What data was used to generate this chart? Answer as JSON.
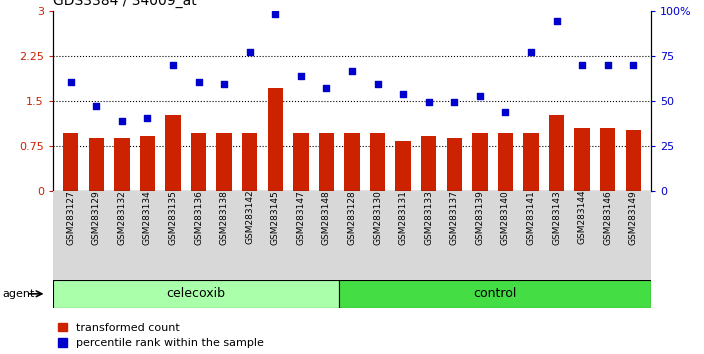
{
  "title": "GDS3384 / 34009_at",
  "categories": [
    "GSM283127",
    "GSM283129",
    "GSM283132",
    "GSM283134",
    "GSM283135",
    "GSM283136",
    "GSM283138",
    "GSM283142",
    "GSM283145",
    "GSM283147",
    "GSM283148",
    "GSM283128",
    "GSM283130",
    "GSM283131",
    "GSM283133",
    "GSM283137",
    "GSM283139",
    "GSM283140",
    "GSM283141",
    "GSM283143",
    "GSM283144",
    "GSM283146",
    "GSM283149"
  ],
  "bar_values": [
    0.97,
    0.88,
    0.88,
    0.92,
    1.27,
    0.97,
    0.97,
    0.97,
    1.72,
    0.97,
    0.97,
    0.97,
    0.97,
    0.83,
    0.92,
    0.88,
    0.97,
    0.97,
    0.97,
    1.27,
    1.05,
    1.05,
    1.02
  ],
  "scatter_values": [
    1.82,
    1.42,
    1.17,
    1.22,
    2.1,
    1.82,
    1.78,
    2.32,
    2.95,
    1.92,
    1.72,
    2.0,
    1.78,
    1.62,
    1.48,
    1.48,
    1.58,
    1.32,
    2.32,
    2.82,
    2.1,
    2.1,
    2.1
  ],
  "bar_color": "#cc2200",
  "scatter_color": "#0000cc",
  "ylim_left": [
    0,
    3
  ],
  "ylim_right": [
    0,
    100
  ],
  "yticks_left": [
    0,
    0.75,
    1.5,
    2.25,
    3
  ],
  "ytick_labels_left": [
    "0",
    "0.75",
    "1.5",
    "2.25",
    "3"
  ],
  "yticks_right": [
    0,
    25,
    50,
    75,
    100
  ],
  "ytick_labels_right": [
    "0",
    "25",
    "50",
    "75",
    "100%"
  ],
  "hlines": [
    0.75,
    1.5,
    2.25
  ],
  "celecoxib_count": 11,
  "control_count": 12,
  "agent_label": "agent",
  "celecoxib_label": "celecoxib",
  "control_label": "control",
  "legend_bar_label": "transformed count",
  "legend_scatter_label": "percentile rank within the sample",
  "background_color": "#ffffff",
  "plot_bg_color": "#ffffff",
  "xtick_bg_color": "#d8d8d8",
  "agent_box_color_cel": "#aaffaa",
  "agent_box_color_ctrl": "#44dd44",
  "tick_color_left": "#cc2200",
  "tick_color_right": "#0000cc"
}
